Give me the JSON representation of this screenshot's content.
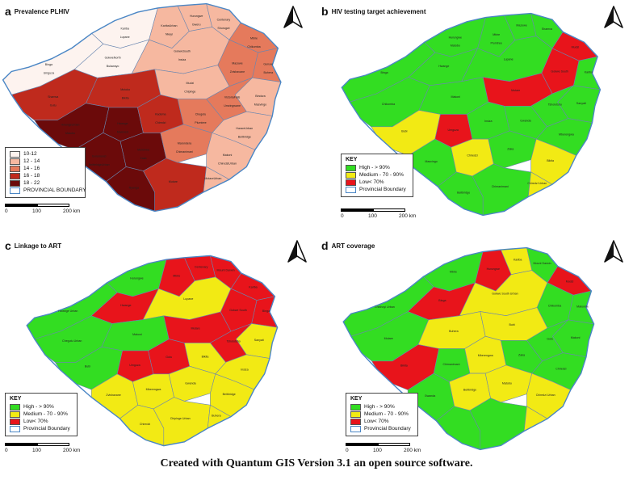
{
  "colors": {
    "high": "#33dd22",
    "medium": "#f2ea14",
    "low": "#e8141b",
    "prov": "#4a86c5",
    "prev": [
      "#fdf3ef",
      "#f6b8a0",
      "#e57a5c",
      "#bf2a1d",
      "#6b0a0a"
    ]
  },
  "panels": [
    {
      "id": "a",
      "letter": "a",
      "title": "Prevalence PLHIV",
      "legend_entries": [
        "10-12",
        "12 - 14",
        "14 - 16",
        "16 - 18",
        "18 - 22",
        "PROVINCIAL BOUNDARY"
      ],
      "district_labels": [
        "Kariba",
        "KaribaUrban",
        "Hurungwe",
        "Centenary",
        "Mbire",
        "Guruve",
        "Binga",
        "GokweNorth",
        "GokweSouth",
        "Mazowe",
        "Bindura",
        "Shamva",
        "Mutoko",
        "Mudzi",
        "VictoriaFalls",
        "HwangeUrban",
        "Hwange",
        "Kadoma",
        "Chegutu",
        "HarareUrban",
        "Goromonzi",
        "Murehwa",
        "Marondera",
        "Makoni",
        "Nyanga",
        "Mutare",
        "MutareUrban",
        "Lupane",
        "Nkayi",
        "Gweru",
        "Shurugwi",
        "Chikomba",
        "Buhera",
        "Umguza",
        "Bulawayo",
        "Insiza",
        "Zvishavane",
        "Masvingo",
        "Gutu",
        "Bikita",
        "Chipinge",
        "Umzingwane",
        "Matobo",
        "Mwenezi",
        "Chiredzi",
        "Plumtree",
        "Beitbridge",
        "BeitbridgeUrban",
        "Zaka",
        "Chimanimani",
        "ChiredziUrban"
      ],
      "scale_labels": [
        "0",
        "100",
        "200 km"
      ]
    },
    {
      "id": "b",
      "letter": "b",
      "title": "HIV testing target achievement",
      "key_title": "KEY",
      "legend_entries": [
        "High - > 90%",
        "Medium - 70 - 90%",
        "Low< 70%",
        "Provincial Boundary"
      ],
      "district_labels": [
        "Hurungwe",
        "Mbire",
        "Mazowe",
        "Shamva",
        "Mudzi",
        "Kariba",
        "Binga",
        "Hwange",
        "Lupane",
        "Gokwe South",
        "Sanyati",
        "Chikomba",
        "Makoni",
        "Mutare",
        "Tsholotsho",
        "Bubi",
        "Umguza",
        "Insiza",
        "Gwanda",
        "Mberengwa",
        "Masvingo",
        "Chiredzi",
        "Zaka",
        "Bikita",
        "Beitbridge",
        "Chimanimani",
        "Chiredzi Urban",
        "Matobo",
        "Plumtree"
      ],
      "scale_labels": [
        "0",
        "100",
        "200 km"
      ]
    },
    {
      "id": "c",
      "letter": "c",
      "title": "Linkage to ART",
      "key_title": "KEY",
      "legend_entries": [
        "High - > 90%",
        "Medium - 70 - 90%",
        "Low< 70%",
        "Provincial Boundary"
      ],
      "district_labels": [
        "Hurungwe",
        "Mbire",
        "Centenary",
        "Mount Darwin",
        "Kariba",
        "Binga",
        "Hwange Urban",
        "Hwange",
        "Lupane",
        "Gokwe South",
        "Sanyati",
        "Chegutu Urban",
        "Makoni",
        "Mutare",
        "Tsholotsho",
        "Bubi",
        "Umguza",
        "Gutu",
        "Bikita",
        "Insiza",
        "Zvishavane",
        "Mberengwa",
        "Gwanda",
        "Beitbridge",
        "Chiredzi",
        "Chipinge Urban",
        "Buhera"
      ],
      "scale_labels": [
        "0",
        "100",
        "200 km"
      ]
    },
    {
      "id": "d",
      "letter": "d",
      "title": "ART coverage",
      "key_title": "KEY",
      "legend_entries": [
        "High - > 90%",
        "Medium - 70 - 90%",
        "Low< 70%",
        "Provincial Boundary"
      ],
      "district_labels": [
        "Mbire",
        "Hurungwe",
        "Kariba",
        "Mount Darwin",
        "Mudzi",
        "Makonde",
        "Chinhoyi Urban",
        "Binga",
        "Gokwe South Urban",
        "Chikomba",
        "Makoni",
        "Mutare",
        "Buhera",
        "Bubi",
        "Gutu",
        "Bikita",
        "Chimanimani",
        "Mberengwa",
        "Zaka",
        "Chiredzi",
        "Gwanda",
        "Beitbridge",
        "Matobo",
        "Chiredzi Urban"
      ],
      "scale_labels": [
        "0",
        "100",
        "200 km"
      ]
    }
  ],
  "caption": "Created with Quantum GIS Version 3.1  an open source software."
}
